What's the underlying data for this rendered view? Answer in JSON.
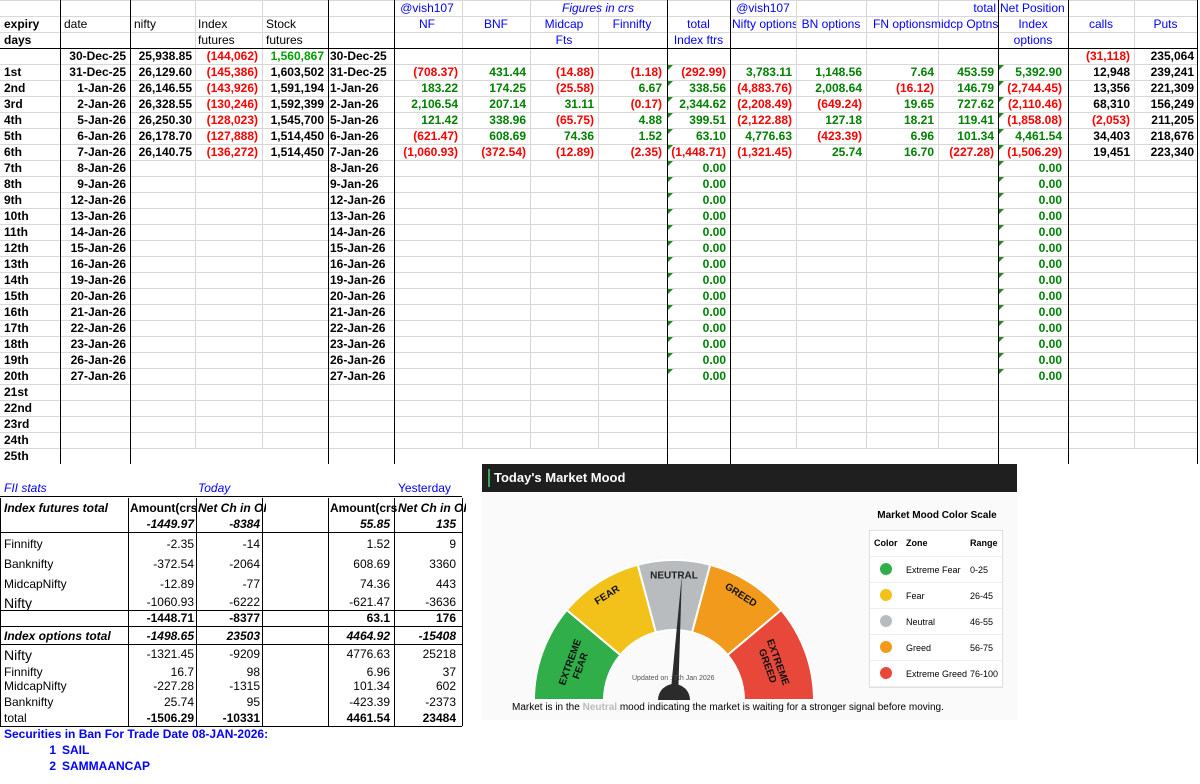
{
  "colors": {
    "negative": "#ff0000",
    "positive": "#00a000",
    "link": "#0000ff",
    "extreme_fear": "#2fae4a",
    "fear": "#f2c11a",
    "neutral": "#b9bcbf",
    "greed": "#f19a1b",
    "extreme_greed": "#e8483a"
  },
  "header": {
    "expiry": "expiry",
    "days": "days",
    "date": "date",
    "nifty": "nifty",
    "index_futures_1": "Index",
    "index_futures_2": "futures",
    "stock_futures_1": "Stock",
    "stock_futures_2": "futures",
    "vish1": "@vish107",
    "nf": "NF",
    "bnf": "BNF",
    "figures": "Figures in crs",
    "midcap_1": "Midcap",
    "midcap_2": "Fts",
    "finnifty": "Finnifty",
    "total_1": "total",
    "total_2": "Index ftrs",
    "vish2": "@vish107",
    "nifty_options": "Nifty options",
    "bn_options": "BN options",
    "fn_options": "FN options",
    "total_3": "total",
    "midcp_optns": "midcp Optns",
    "net_position": "Net Position",
    "index_1": "Index",
    "index_2": "options",
    "calls": "calls",
    "puts": "Puts"
  },
  "day_labels": [
    "1st",
    "2nd",
    "3rd",
    "4th",
    "5th",
    "6th",
    "7th",
    "8th",
    "9th",
    "10th",
    "11th",
    "12th",
    "13th",
    "14th",
    "15th",
    "16th",
    "17th",
    "18th",
    "19th",
    "20th",
    "21st",
    "22nd",
    "23rd",
    "24th",
    "25th"
  ],
  "base_row": {
    "date": "30-Dec-25",
    "nifty": "25,938.85",
    "idx_fut": "(144,062)",
    "stk_fut": "1,560,867",
    "date2": "30-Dec-25",
    "calls": "(31,118)",
    "puts": "235,064"
  },
  "rows": [
    {
      "date": "31-Dec-25",
      "nifty": "26,129.60",
      "idx_fut": "(145,386)",
      "stk_fut": "1,603,502",
      "date2": "31-Dec-25",
      "nf": "(708.37)",
      "bnf": "431.44",
      "midcap": "(14.88)",
      "fin": "(1.18)",
      "tot": "(292.99)",
      "nopt": "3,783.11",
      "bnopt": "1,148.56",
      "fnopt": "7.64",
      "midopt": "453.59",
      "net": "5,392.90",
      "calls": "12,948",
      "puts": "239,241"
    },
    {
      "date": "1-Jan-26",
      "nifty": "26,146.55",
      "idx_fut": "(143,926)",
      "stk_fut": "1,591,194",
      "date2": "1-Jan-26",
      "nf": "183.22",
      "bnf": "174.25",
      "midcap": "(25.58)",
      "fin": "6.67",
      "tot": "338.56",
      "nopt": "(4,883.76)",
      "bnopt": "2,008.64",
      "fnopt": "(16.12)",
      "midopt": "146.79",
      "net": "(2,744.45)",
      "calls": "13,356",
      "puts": "221,309"
    },
    {
      "date": "2-Jan-26",
      "nifty": "26,328.55",
      "idx_fut": "(130,246)",
      "stk_fut": "1,592,399",
      "date2": "2-Jan-26",
      "nf": "2,106.54",
      "bnf": "207.14",
      "midcap": "31.11",
      "fin": "(0.17)",
      "tot": "2,344.62",
      "nopt": "(2,208.49)",
      "bnopt": "(649.24)",
      "fnopt": "19.65",
      "midopt": "727.62",
      "net": "(2,110.46)",
      "calls": "68,310",
      "puts": "156,249"
    },
    {
      "date": "5-Jan-26",
      "nifty": "26,250.30",
      "idx_fut": "(128,023)",
      "stk_fut": "1,545,700",
      "date2": "5-Jan-26",
      "nf": "121.42",
      "bnf": "338.96",
      "midcap": "(65.75)",
      "fin": "4.88",
      "tot": "399.51",
      "nopt": "(2,122.88)",
      "bnopt": "127.18",
      "fnopt": "18.21",
      "midopt": "119.41",
      "net": "(1,858.08)",
      "calls": "(2,053)",
      "puts": "211,205"
    },
    {
      "date": "6-Jan-26",
      "nifty": "26,178.70",
      "idx_fut": "(127,888)",
      "stk_fut": "1,514,450",
      "date2": "6-Jan-26",
      "nf": "(621.47)",
      "bnf": "608.69",
      "midcap": "74.36",
      "fin": "1.52",
      "tot": "63.10",
      "nopt": "4,776.63",
      "bnopt": "(423.39)",
      "fnopt": "6.96",
      "midopt": "101.34",
      "net": "4,461.54",
      "calls": "34,403",
      "puts": "218,676"
    },
    {
      "date": "7-Jan-26",
      "nifty": "26,140.75",
      "idx_fut": "(136,272)",
      "stk_fut": "1,514,450",
      "date2": "7-Jan-26",
      "nf": "(1,060.93)",
      "bnf": "(372.54)",
      "midcap": "(12.89)",
      "fin": "(2.35)",
      "tot": "(1,448.71)",
      "nopt": "(1,321.45)",
      "bnopt": "25.74",
      "fnopt": "16.70",
      "midopt": "(227.28)",
      "net": "(1,506.29)",
      "calls": "19,451",
      "puts": "223,340"
    },
    {
      "date": "8-Jan-26",
      "date2": "8-Jan-26",
      "tot": "0.00",
      "net": "0.00"
    },
    {
      "date": "9-Jan-26",
      "date2": "9-Jan-26",
      "tot": "0.00",
      "net": "0.00"
    },
    {
      "date": "12-Jan-26",
      "date2": "12-Jan-26",
      "tot": "0.00",
      "net": "0.00"
    },
    {
      "date": "13-Jan-26",
      "date2": "13-Jan-26",
      "tot": "0.00",
      "net": "0.00"
    },
    {
      "date": "14-Jan-26",
      "date2": "14-Jan-26",
      "tot": "0.00",
      "net": "0.00"
    },
    {
      "date": "15-Jan-26",
      "date2": "15-Jan-26",
      "tot": "0.00",
      "net": "0.00"
    },
    {
      "date": "16-Jan-26",
      "date2": "16-Jan-26",
      "tot": "0.00",
      "net": "0.00"
    },
    {
      "date": "19-Jan-26",
      "date2": "19-Jan-26",
      "tot": "0.00",
      "net": "0.00"
    },
    {
      "date": "20-Jan-26",
      "date2": "20-Jan-26",
      "tot": "0.00",
      "net": "0.00"
    },
    {
      "date": "21-Jan-26",
      "date2": "21-Jan-26",
      "tot": "0.00",
      "net": "0.00"
    },
    {
      "date": "22-Jan-26",
      "date2": "22-Jan-26",
      "tot": "0.00",
      "net": "0.00"
    },
    {
      "date": "23-Jan-26",
      "date2": "23-Jan-26",
      "tot": "0.00",
      "net": "0.00"
    },
    {
      "date": "26-Jan-26",
      "date2": "26-Jan-26",
      "tot": "0.00",
      "net": "0.00"
    },
    {
      "date": "27-Jan-26",
      "date2": "27-Jan-26",
      "tot": "0.00",
      "net": "0.00"
    }
  ],
  "fii": {
    "title": "FII stats",
    "today": "Today",
    "yesterday": "Yesterday",
    "index_futures_total": "Index futures total",
    "amount": "Amount(crs",
    "net_ch": "Net Ch in OI",
    "idx_fut_total": {
      "t_amt": "-1449.97",
      "t_oi": "-8384",
      "y_amt": "55.85",
      "y_oi": "135"
    },
    "futures": [
      {
        "name": "Finnifty",
        "t_amt": "-2.35",
        "t_oi": "-14",
        "y_amt": "1.52",
        "y_oi": "9"
      },
      {
        "name": "Banknifty",
        "t_amt": "-372.54",
        "t_oi": "-2064",
        "y_amt": "608.69",
        "y_oi": "3360"
      },
      {
        "name": "MidcapNifty",
        "t_amt": "-12.89",
        "t_oi": "-77",
        "y_amt": "74.36",
        "y_oi": "443"
      },
      {
        "name": "Nifty",
        "t_amt": "-1060.93",
        "t_oi": "-6222",
        "y_amt": "-621.47",
        "y_oi": "-3636"
      }
    ],
    "fut_sum": {
      "t_amt": "-1448.71",
      "t_oi": "-8377",
      "y_amt": "63.1",
      "y_oi": "176"
    },
    "index_options_total": "Index options total",
    "opt_total": {
      "t_amt": "-1498.65",
      "t_oi": "23503",
      "y_amt": "4464.92",
      "y_oi": "-15408"
    },
    "options": [
      {
        "name": "Nifty",
        "t_amt": "-1321.45",
        "t_oi": "-9209",
        "y_amt": "4776.63",
        "y_oi": "25218"
      },
      {
        "name": "Finnifty",
        "t_amt": "16.7",
        "t_oi": "98",
        "y_amt": "6.96",
        "y_oi": "37"
      },
      {
        "name": "MidcapNifty",
        "t_amt": "-227.28",
        "t_oi": "-1315",
        "y_amt": "101.34",
        "y_oi": "602"
      },
      {
        "name": "Banknifty",
        "t_amt": "25.74",
        "t_oi": "95",
        "y_amt": "-423.39",
        "y_oi": "-2373"
      }
    ],
    "opt_sum": {
      "name": "total",
      "t_amt": "-1506.29",
      "t_oi": "-10331",
      "y_amt": "4461.54",
      "y_oi": "23484"
    }
  },
  "ban": {
    "title": "Securities in Ban For Trade Date 08-JAN-2026:",
    "items": [
      {
        "no": "1",
        "name": "SAIL"
      },
      {
        "no": "2",
        "name": "SAMMAANCAP"
      }
    ]
  },
  "mood": {
    "title": "Today's Market Mood",
    "zones": [
      "EXTREME FEAR",
      "FEAR",
      "NEUTRAL",
      "GREED",
      "EXTREME GREED"
    ],
    "reading_zone": "Neutral",
    "reading_fraction": 0.52,
    "updated": "Updated on : 7th Jan 2026",
    "msg_pre": "Market is in the ",
    "msg_zone": "Neutral",
    "msg_post": " mood indicating the market is waiting for a stronger signal before moving.",
    "scale_title": "Market Mood Color Scale",
    "scale_head": {
      "color": "Color",
      "zone": "Zone",
      "range": "Range"
    },
    "scale": [
      {
        "zone": "Extreme Fear",
        "range": "0-25",
        "color": "#2fae4a"
      },
      {
        "zone": "Fear",
        "range": "26-45",
        "color": "#f2c11a"
      },
      {
        "zone": "Neutral",
        "range": "46-55",
        "color": "#b9bcbf"
      },
      {
        "zone": "Greed",
        "range": "56-75",
        "color": "#f19a1b"
      },
      {
        "zone": "Extreme Greed",
        "range": "76-100",
        "color": "#e8483a"
      }
    ]
  }
}
